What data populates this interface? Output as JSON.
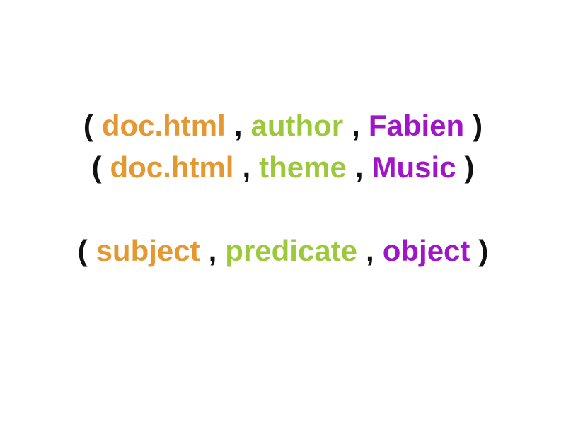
{
  "colors": {
    "subject": "#E59730",
    "predicate": "#9CC93A",
    "object": "#A115C8",
    "punctuation": "#111111",
    "background": "#FFFFFF"
  },
  "punctuation": {
    "open": "(",
    "separator": ",",
    "close": ")"
  },
  "triples": [
    {
      "subject": "doc.html",
      "predicate": "author",
      "object": "Fabien"
    },
    {
      "subject": "doc.html",
      "predicate": "theme",
      "object": "Music"
    },
    {
      "subject": "subject",
      "predicate": "predicate",
      "object": "object"
    }
  ]
}
